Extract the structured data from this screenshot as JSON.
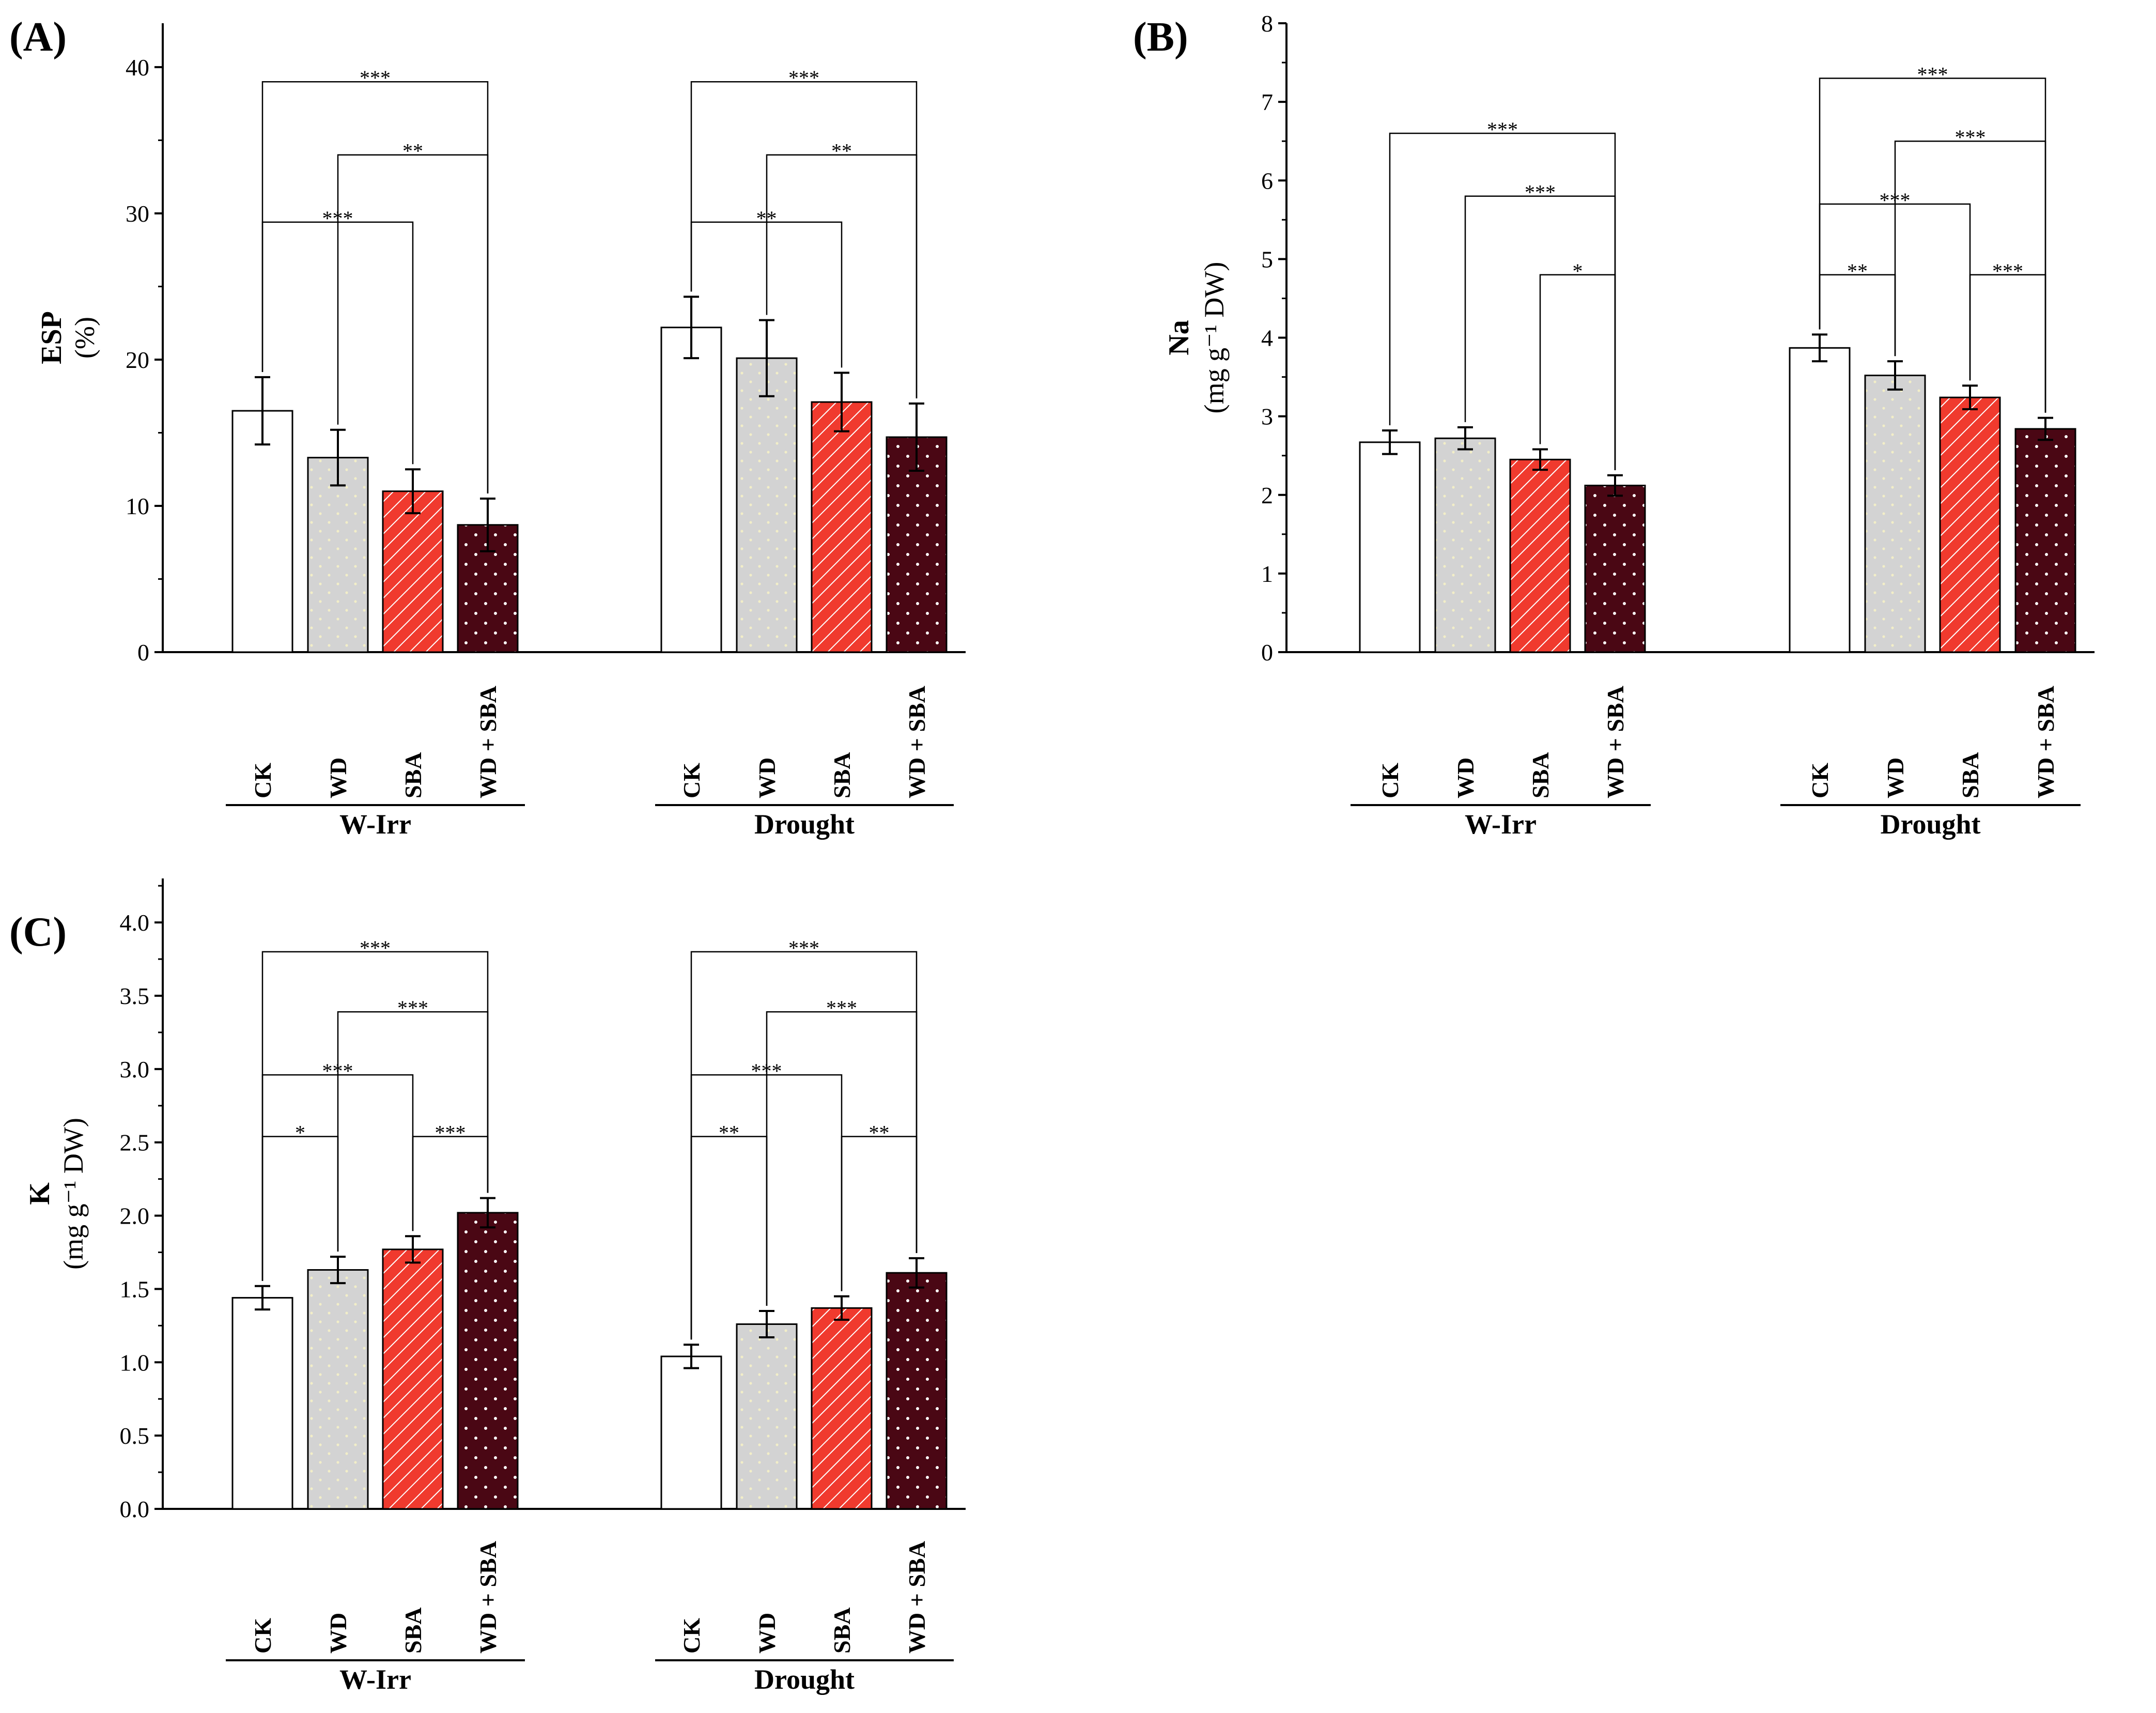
{
  "patterns": {
    "CK": {
      "fill": "#ffffff",
      "style": "solid"
    },
    "WD": {
      "fill": "#d3d3d3",
      "style": "dots",
      "dot": "#f2eec8"
    },
    "SBA": {
      "fill": "#f03a2e",
      "style": "diagonal-lines",
      "line": "#ffffff"
    },
    "WD + SBA": {
      "fill": "#4a0714",
      "style": "dots",
      "dot": "#ffffff"
    }
  },
  "chart_data": [
    {
      "panel": "(A)",
      "type": "bar",
      "ylabel": "ESP",
      "ylabel_unit": "(%)",
      "ylim": [
        0,
        43
      ],
      "yticks": [
        0,
        10,
        20,
        30,
        40
      ],
      "ytick_labels": [
        "0",
        "10",
        "20",
        "30",
        "40"
      ],
      "categories": [
        "CK",
        "WD",
        "SBA",
        "WD + SBA"
      ],
      "groups": [
        {
          "name": "W-Irr",
          "values": [
            16.5,
            13.3,
            11.0,
            8.7
          ],
          "errors": [
            2.3,
            1.9,
            1.5,
            1.8
          ],
          "significance": [
            {
              "from": 0,
              "to": 3,
              "label": "***",
              "level": 39
            },
            {
              "from": 1,
              "to": 3,
              "label": "**",
              "level": 34
            },
            {
              "from": 0,
              "to": 2,
              "label": "***",
              "level": 29.4
            }
          ]
        },
        {
          "name": "Drought",
          "values": [
            22.2,
            20.1,
            17.1,
            14.7
          ],
          "errors": [
            2.1,
            2.6,
            2.0,
            2.3
          ],
          "significance": [
            {
              "from": 0,
              "to": 3,
              "label": "***",
              "level": 39
            },
            {
              "from": 1,
              "to": 3,
              "label": "**",
              "level": 34
            },
            {
              "from": 0,
              "to": 2,
              "label": "**",
              "level": 29.4
            }
          ]
        }
      ]
    },
    {
      "panel": "(B)",
      "type": "bar",
      "ylabel": "Na",
      "ylabel_unit": "(mg g⁻¹ DW)",
      "ylim": [
        0,
        8
      ],
      "yticks": [
        0,
        1,
        2,
        3,
        4,
        5,
        6,
        7,
        8
      ],
      "ytick_labels": [
        "0",
        "1",
        "2",
        "3",
        "4",
        "5",
        "6",
        "7",
        "8"
      ],
      "categories": [
        "CK",
        "WD",
        "SBA",
        "WD + SBA"
      ],
      "groups": [
        {
          "name": "W-Irr",
          "values": [
            2.67,
            2.72,
            2.45,
            2.12
          ],
          "errors": [
            0.15,
            0.14,
            0.13,
            0.13
          ],
          "significance": [
            {
              "from": 0,
              "to": 3,
              "label": "***",
              "level": 6.6
            },
            {
              "from": 1,
              "to": 3,
              "label": "***",
              "level": 5.8
            },
            {
              "from": 2,
              "to": 3,
              "label": "*",
              "level": 4.8
            }
          ]
        },
        {
          "name": "Drought",
          "values": [
            3.87,
            3.52,
            3.24,
            2.84
          ],
          "errors": [
            0.17,
            0.18,
            0.15,
            0.14
          ],
          "significance": [
            {
              "from": 0,
              "to": 3,
              "label": "***",
              "level": 7.3
            },
            {
              "from": 1,
              "to": 3,
              "label": "***",
              "level": 6.5
            },
            {
              "from": 0,
              "to": 2,
              "label": "***",
              "level": 5.7
            },
            {
              "from": 0,
              "to": 1,
              "label": "**",
              "level": 4.8
            },
            {
              "from": 2,
              "to": 3,
              "label": "***",
              "level": 4.8
            }
          ]
        }
      ]
    },
    {
      "panel": "(C)",
      "type": "bar",
      "ylabel": "K",
      "ylabel_unit": "(mg g⁻¹ DW)",
      "ylim": [
        0,
        4.3
      ],
      "yticks": [
        0,
        0.5,
        1,
        1.5,
        2,
        2.5,
        3,
        3.5,
        4
      ],
      "ytick_labels": [
        "0.0",
        "0.5",
        "1.0",
        "1.5",
        "2.0",
        "2.5",
        "3.0",
        "3.5",
        "4.0"
      ],
      "categories": [
        "CK",
        "WD",
        "SBA",
        "WD + SBA"
      ],
      "groups": [
        {
          "name": "W-Irr",
          "values": [
            1.44,
            1.63,
            1.77,
            2.02
          ],
          "errors": [
            0.08,
            0.09,
            0.09,
            0.1
          ],
          "significance": [
            {
              "from": 0,
              "to": 3,
              "label": "***",
              "level": 3.8
            },
            {
              "from": 1,
              "to": 3,
              "label": "***",
              "level": 3.39
            },
            {
              "from": 0,
              "to": 2,
              "label": "***",
              "level": 2.96
            },
            {
              "from": 0,
              "to": 1,
              "label": "*",
              "level": 2.54
            },
            {
              "from": 2,
              "to": 3,
              "label": "***",
              "level": 2.54
            }
          ]
        },
        {
          "name": "Drought",
          "values": [
            1.04,
            1.26,
            1.37,
            1.61
          ],
          "errors": [
            0.08,
            0.09,
            0.08,
            0.1
          ],
          "significance": [
            {
              "from": 0,
              "to": 3,
              "label": "***",
              "level": 3.8
            },
            {
              "from": 1,
              "to": 3,
              "label": "***",
              "level": 3.39
            },
            {
              "from": 0,
              "to": 2,
              "label": "***",
              "level": 2.96
            },
            {
              "from": 0,
              "to": 1,
              "label": "**",
              "level": 2.54
            },
            {
              "from": 2,
              "to": 3,
              "label": "**",
              "level": 2.54
            }
          ]
        }
      ]
    }
  ]
}
